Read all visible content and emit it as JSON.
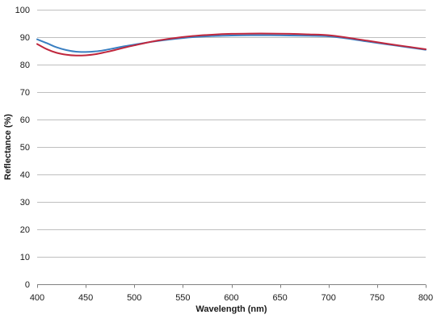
{
  "chart_data": {
    "type": "line",
    "title": "",
    "xlabel": "Wavelength (nm)",
    "ylabel": "Reflectance (%)",
    "xlim": [
      400,
      800
    ],
    "ylim": [
      0,
      100
    ],
    "x_ticks": [
      400,
      450,
      500,
      550,
      600,
      650,
      700,
      750,
      800
    ],
    "y_ticks": [
      0,
      10,
      20,
      30,
      40,
      50,
      60,
      70,
      80,
      90,
      100
    ],
    "x_tick_labels": [
      "400",
      "450",
      "500",
      "550",
      "600",
      "650",
      "700",
      "750",
      "800"
    ],
    "y_tick_labels": [
      "0",
      "10",
      "20",
      "30",
      "40",
      "50",
      "60",
      "70",
      "80",
      "90",
      "100"
    ],
    "grid": "horizontal",
    "legend": "none",
    "series": [
      {
        "color": "#3a7fc1",
        "x": [
          400,
          410,
          420,
          430,
          440,
          450,
          460,
          470,
          480,
          490,
          500,
          520,
          540,
          560,
          580,
          600,
          620,
          640,
          660,
          680,
          700,
          720,
          740,
          760,
          780,
          800
        ],
        "y": [
          89.2,
          87.8,
          86.3,
          85.3,
          84.7,
          84.6,
          84.8,
          85.3,
          86.0,
          86.7,
          87.3,
          88.4,
          89.3,
          90.0,
          90.4,
          90.6,
          90.7,
          90.7,
          90.6,
          90.5,
          90.3,
          89.5,
          88.4,
          87.4,
          86.4,
          85.4
        ]
      },
      {
        "color": "#c0273d",
        "x": [
          400,
          410,
          420,
          430,
          440,
          450,
          460,
          470,
          480,
          490,
          500,
          520,
          540,
          560,
          580,
          600,
          620,
          640,
          660,
          680,
          700,
          720,
          740,
          760,
          780,
          800
        ],
        "y": [
          87.5,
          85.6,
          84.3,
          83.6,
          83.3,
          83.4,
          83.8,
          84.5,
          85.3,
          86.2,
          87.0,
          88.5,
          89.6,
          90.4,
          90.9,
          91.2,
          91.3,
          91.3,
          91.2,
          91.0,
          90.7,
          89.8,
          88.7,
          87.6,
          86.6,
          85.6
        ]
      }
    ]
  }
}
